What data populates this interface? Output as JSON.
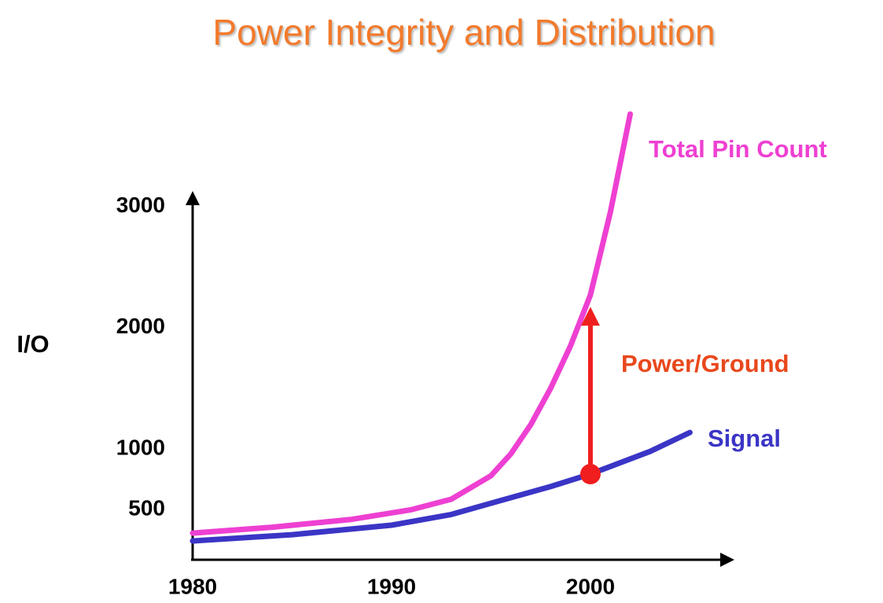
{
  "chart_data": {
    "type": "line",
    "title": "Power Integrity and Distribution",
    "y_label": "I/O",
    "xlim": [
      1980,
      2007
    ],
    "xticks": [
      1980,
      1990,
      2000
    ],
    "ylim": [
      100,
      3100
    ],
    "yticks": [
      500,
      1000,
      2000,
      3000
    ],
    "grid": false,
    "series": [
      {
        "name": "Total Pin Count",
        "color": "#ee40d2",
        "x": [
          1980,
          1984,
          1988,
          1991,
          1993,
          1995,
          1996,
          1997,
          1998,
          1999,
          2000,
          2001,
          2002
        ],
        "values": [
          307,
          355,
          420,
          500,
          586,
          780,
          960,
          1200,
          1500,
          1850,
          2270,
          2950,
          3760
        ]
      },
      {
        "name": "Signal",
        "color": "#3b35c6",
        "x": [
          1980,
          1985,
          1990,
          1993,
          1995,
          1998,
          2000,
          2003,
          2005
        ],
        "values": [
          242,
          294,
          372,
          460,
          553,
          690,
          793,
          980,
          1136
        ]
      }
    ],
    "arrow": {
      "label": "Power/Ground",
      "color": "#f01e1e",
      "x": 2000,
      "from": 793,
      "to": 2200
    }
  }
}
